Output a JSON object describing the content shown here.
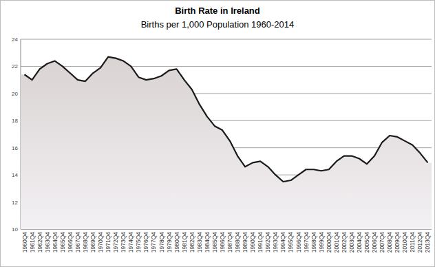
{
  "chart_data": {
    "type": "area",
    "title": "Birth Rate in Ireland",
    "subtitle": "Births per 1,000 Population 1960-2014",
    "categories": [
      "1960Q4",
      "1961Q4",
      "1962Q4",
      "1963Q4",
      "1964Q4",
      "1965Q4",
      "1966Q4",
      "1967Q4",
      "1968Q4",
      "1969Q4",
      "1970Q4",
      "1971Q4",
      "1972Q4",
      "1973Q4",
      "1974Q4",
      "1975Q4",
      "1976Q4",
      "1977Q4",
      "1978Q4",
      "1979Q4",
      "1980Q4",
      "1981Q4",
      "1982Q4",
      "1983Q4",
      "1984Q4",
      "1985Q4",
      "1986Q4",
      "1987Q4",
      "1988Q4",
      "1989Q4",
      "1990Q4",
      "1991Q4",
      "1992Q4",
      "1993Q4",
      "1994Q4",
      "1995Q4",
      "1996Q4",
      "1997Q4",
      "1998Q4",
      "1999Q4",
      "2000Q4",
      "2001Q4",
      "2002Q4",
      "2003Q4",
      "2004Q4",
      "2005Q4",
      "2006Q4",
      "2007Q4",
      "2008Q4",
      "2009Q4",
      "2010Q4",
      "2011Q4",
      "2012Q4",
      "2013Q4"
    ],
    "values": [
      21.4,
      21.0,
      21.8,
      22.2,
      22.4,
      22.0,
      21.5,
      21.0,
      20.9,
      21.5,
      21.9,
      22.7,
      22.6,
      22.4,
      22.0,
      21.2,
      21.0,
      21.1,
      21.3,
      21.7,
      21.8,
      21.0,
      20.3,
      19.2,
      18.3,
      17.6,
      17.3,
      16.5,
      15.4,
      14.6,
      14.9,
      15.0,
      14.6,
      14.0,
      13.5,
      13.6,
      14.0,
      14.4,
      14.4,
      14.3,
      14.4,
      15.0,
      15.4,
      15.4,
      15.2,
      14.8,
      15.4,
      16.4,
      16.9,
      16.8,
      16.5,
      16.2,
      15.6,
      14.9
    ],
    "color": "#1a1a1a",
    "ylim": [
      10,
      24
    ],
    "yticks": [
      10,
      12,
      14,
      16,
      18,
      20,
      22,
      24
    ],
    "grid": true
  }
}
